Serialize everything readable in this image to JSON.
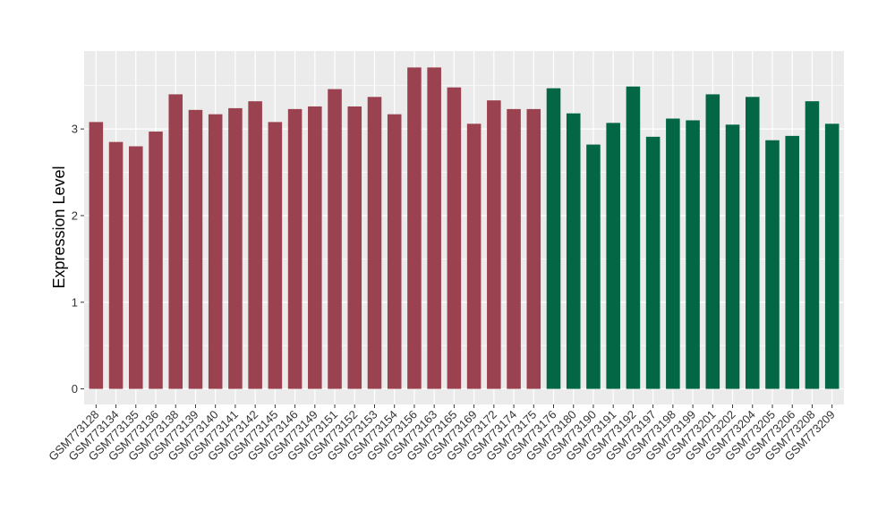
{
  "chart_data": {
    "type": "bar",
    "title": "",
    "xlabel": "",
    "ylabel": "Expression Level",
    "ylim": [
      -0.18,
      3.9
    ],
    "yticks": [
      0,
      1,
      2,
      3
    ],
    "grid": true,
    "legend": "none",
    "colors": {
      "group1": "#9B4250",
      "group2": "#036645",
      "panel": "#EBEBEB",
      "grid": "#FFFFFF"
    },
    "categories": [
      "GSM773128",
      "GSM773134",
      "GSM773135",
      "GSM773136",
      "GSM773138",
      "GSM773139",
      "GSM773140",
      "GSM773141",
      "GSM773142",
      "GSM773145",
      "GSM773146",
      "GSM773149",
      "GSM773151",
      "GSM773152",
      "GSM773153",
      "GSM773154",
      "GSM773156",
      "GSM773163",
      "GSM773165",
      "GSM773169",
      "GSM773172",
      "GSM773174",
      "GSM773175",
      "GSM773176",
      "GSM773180",
      "GSM773190",
      "GSM773191",
      "GSM773192",
      "GSM773197",
      "GSM773198",
      "GSM773199",
      "GSM773201",
      "GSM773202",
      "GSM773204",
      "GSM773205",
      "GSM773206",
      "GSM773208",
      "GSM773209"
    ],
    "values": [
      3.08,
      2.85,
      2.8,
      2.97,
      3.4,
      3.22,
      3.17,
      3.24,
      3.32,
      3.08,
      3.23,
      3.26,
      3.46,
      3.26,
      3.37,
      3.17,
      3.71,
      3.71,
      3.48,
      3.06,
      3.33,
      3.23,
      3.23,
      3.47,
      3.18,
      2.82,
      3.07,
      3.49,
      2.91,
      3.12,
      3.1,
      3.4,
      3.05,
      3.37,
      2.87,
      2.92,
      3.32,
      3.06
    ],
    "groups": [
      1,
      1,
      1,
      1,
      1,
      1,
      1,
      1,
      1,
      1,
      1,
      1,
      1,
      1,
      1,
      1,
      1,
      1,
      1,
      1,
      1,
      1,
      1,
      2,
      2,
      2,
      2,
      2,
      2,
      2,
      2,
      2,
      2,
      2,
      2,
      2,
      2,
      2
    ]
  }
}
